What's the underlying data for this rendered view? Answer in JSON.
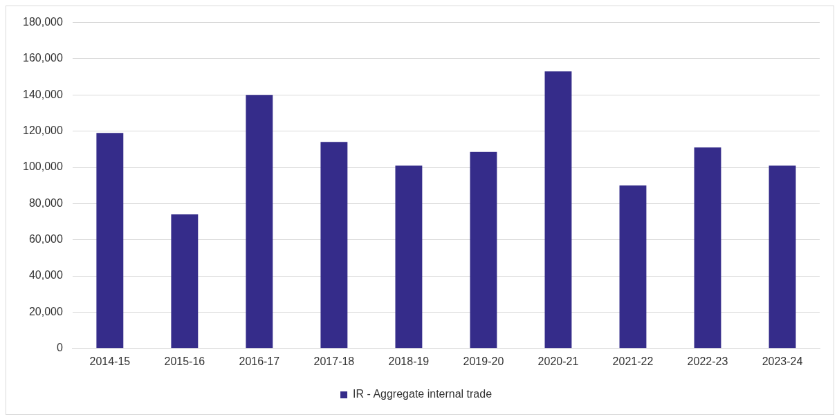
{
  "chart_data": {
    "type": "bar",
    "categories": [
      "2014-15",
      "2015-16",
      "2016-17",
      "2017-18",
      "2018-19",
      "2019-20",
      "2020-21",
      "2021-22",
      "2022-23",
      "2023-24"
    ],
    "series": [
      {
        "name": "IR - Aggregate internal trade",
        "color": "#352c8a",
        "values": [
          119000,
          74000,
          140000,
          114000,
          101000,
          108500,
          153000,
          90000,
          111000,
          101000
        ]
      }
    ],
    "ylim": [
      0,
      180000
    ],
    "yticks": [
      {
        "value": 0,
        "label": "0"
      },
      {
        "value": 20000,
        "label": "20,000"
      },
      {
        "value": 40000,
        "label": "40,000"
      },
      {
        "value": 60000,
        "label": "60,000"
      },
      {
        "value": 80000,
        "label": "80,000"
      },
      {
        "value": 100000,
        "label": "100,000"
      },
      {
        "value": 120000,
        "label": "120,000"
      },
      {
        "value": 140000,
        "label": "140,000"
      },
      {
        "value": 160000,
        "label": "160,000"
      },
      {
        "value": 180000,
        "label": "180,000"
      }
    ],
    "grid": "y",
    "legend": "bottom"
  }
}
